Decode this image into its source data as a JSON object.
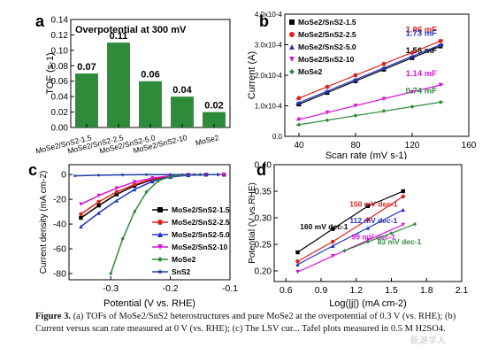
{
  "chart_data": [
    {
      "type": "bar",
      "panel_letter": "a",
      "title": "Overpotential at 300 mV",
      "ylabel": "TOF (s-1)",
      "categories": [
        "MoSe2/SnS2-1.5",
        "MoSe2/SnS2-2.5",
        "MoSe2/SnS2-5.0",
        "MoSe2/SnS2-10",
        "MoSe2"
      ],
      "values": [
        0.07,
        0.11,
        0.06,
        0.04,
        0.02
      ],
      "value_labels": [
        "0.07",
        "0.11",
        "0.06",
        "0.04",
        "0.02"
      ],
      "ylim": [
        0,
        0.14
      ],
      "yticks": [
        "0.00",
        "0.02",
        "0.04",
        "0.06",
        "0.08",
        "0.10",
        "0.12",
        "0.14"
      ],
      "bar_color": "#2e8b3a"
    },
    {
      "type": "scatter",
      "panel_letter": "b",
      "xlabel": "Scan rate (mV s-1)",
      "ylabel": "Current (A)",
      "xlim": [
        30,
        160
      ],
      "ylim": [
        0,
        0.0004
      ],
      "xticks": [
        "40",
        "80",
        "120",
        "160"
      ],
      "yticks": [
        "0.0",
        "1.0x10-4",
        "2.0x10-4",
        "3.0x10-4",
        "4.0x10-4"
      ],
      "legend_position": "top-left",
      "x": [
        40,
        60,
        80,
        100,
        120,
        140
      ],
      "series": [
        {
          "name": "MoSe2/SnS2-1.5",
          "color": "#000000",
          "marker": "square",
          "values": [
            0.000105,
            0.000143,
            0.000181,
            0.000219,
            0.000257,
            0.000295
          ],
          "label": "1.56 mF"
        },
        {
          "name": "MoSe2/SnS2-2.5",
          "color": "#e0201b",
          "marker": "circle",
          "values": [
            0.000125,
            0.000162,
            0.0002,
            0.000237,
            0.000274,
            0.000312
          ],
          "label": "1.86 mF"
        },
        {
          "name": "MoSe2/SnS2-5.0",
          "color": "#2233c8",
          "marker": "triangle",
          "values": [
            0.00011,
            0.000148,
            0.000186,
            0.000224,
            0.000262,
            0.0003
          ],
          "label": "1.73 mF"
        },
        {
          "name": "MoSe2/SnS2-10",
          "color": "#d418d4",
          "marker": "triangle-down",
          "values": [
            5.5e-05,
            7.8e-05,
            0.0001,
            0.000122,
            0.000145,
            0.000168
          ],
          "label": "1.14 mF"
        },
        {
          "name": "MoSe2",
          "color": "#2e8b3a",
          "marker": "diamond",
          "values": [
            3.8e-05,
            5.3e-05,
            6.8e-05,
            8.3e-05,
            9.7e-05,
            0.000112
          ],
          "label": "0.74 mF"
        }
      ]
    },
    {
      "type": "line",
      "panel_letter": "c",
      "xlabel": "Potential (V vs. RHE)",
      "ylabel": "Current density (mA cm-2)",
      "xlim": [
        -0.37,
        -0.1
      ],
      "ylim": [
        -85,
        8
      ],
      "xticks": [
        "-0.3",
        "-0.2",
        "-0.1"
      ],
      "yticks": [
        "0",
        "-20",
        "-40",
        "-60",
        "-80"
      ],
      "legend_position": "right",
      "series": [
        {
          "name": "MoSe2/SnS2-1.5",
          "color": "#000000",
          "marker": "square",
          "x": [
            -0.35,
            -0.32,
            -0.29,
            -0.26,
            -0.23,
            -0.2,
            -0.17,
            -0.14,
            -0.11
          ],
          "values": [
            -35,
            -25,
            -16,
            -9,
            -4,
            -1.5,
            -0.4,
            0,
            0
          ]
        },
        {
          "name": "MoSe2/SnS2-2.5",
          "color": "#e0201b",
          "marker": "circle",
          "x": [
            -0.35,
            -0.32,
            -0.29,
            -0.26,
            -0.23,
            -0.2,
            -0.17,
            -0.14,
            -0.11
          ],
          "values": [
            -32,
            -22,
            -14,
            -8,
            -3.5,
            -1.2,
            -0.3,
            0,
            0
          ]
        },
        {
          "name": "MoSe2/SnS2-5.0",
          "color": "#2233c8",
          "marker": "triangle",
          "x": [
            -0.35,
            -0.32,
            -0.29,
            -0.26,
            -0.23,
            -0.2,
            -0.17,
            -0.14,
            -0.11
          ],
          "values": [
            -42,
            -31,
            -21,
            -12,
            -5.5,
            -2,
            -0.5,
            0,
            0
          ]
        },
        {
          "name": "MoSe2/SnS2-10",
          "color": "#d418d4",
          "marker": "triangle-down",
          "x": [
            -0.35,
            -0.32,
            -0.29,
            -0.26,
            -0.23,
            -0.2,
            -0.17,
            -0.14,
            -0.11
          ],
          "values": [
            -24,
            -17,
            -11,
            -6,
            -2.8,
            -1,
            -0.2,
            0,
            0
          ]
        },
        {
          "name": "MoSe2",
          "color": "#2e8b3a",
          "marker": "diamond",
          "x": [
            -0.3,
            -0.28,
            -0.26,
            -0.24,
            -0.22,
            -0.2,
            -0.18,
            -0.15,
            -0.12
          ],
          "values": [
            -80,
            -52,
            -30,
            -14,
            -5,
            -1.5,
            -0.3,
            0,
            0
          ]
        },
        {
          "name": "SnS2",
          "color": "#1f3da8",
          "marker": "star",
          "x": [
            -0.36,
            -0.32,
            -0.28,
            -0.24,
            -0.2,
            -0.16,
            -0.12
          ],
          "values": [
            -1,
            -0.5,
            -0.2,
            0,
            0,
            0,
            0
          ]
        }
      ]
    },
    {
      "type": "scatter",
      "panel_letter": "d",
      "xlabel": "Log(|j|) (mA cm-2)",
      "ylabel": "Potential (V vs.RHE)",
      "xlim": [
        0.5,
        2.1
      ],
      "ylim": [
        0.18,
        0.4
      ],
      "xticks": [
        "0.6",
        "0.9",
        "1.2",
        "1.5",
        "1.8",
        "2.1"
      ],
      "yticks": [
        "0.20",
        "0.25",
        "0.30",
        "0.35",
        "0.40"
      ],
      "series": [
        {
          "name": "MoSe2/SnS2-1.5",
          "color": "#000000",
          "marker": "square",
          "x": [
            0.7,
            1.0,
            1.3,
            1.6
          ],
          "values": [
            0.235,
            0.279,
            0.322,
            0.35
          ],
          "label": "160 mV dec-1"
        },
        {
          "name": "MoSe2/SnS2-2.5",
          "color": "#e0201b",
          "marker": "circle",
          "x": [
            0.7,
            1.0,
            1.3,
            1.6
          ],
          "values": [
            0.218,
            0.255,
            0.297,
            0.34
          ],
          "label": "150 mV dec-1"
        },
        {
          "name": "MoSe2/SnS2-5.0",
          "color": "#2233c8",
          "marker": "triangle",
          "x": [
            0.7,
            1.0,
            1.3,
            1.6
          ],
          "values": [
            0.212,
            0.247,
            0.281,
            0.315
          ],
          "label": "112 mV dec-1"
        },
        {
          "name": "MoSe2/SnS2-10",
          "color": "#d418d4",
          "marker": "triangle-down",
          "x": [
            0.7,
            1.0,
            1.3,
            1.6
          ],
          "values": [
            0.198,
            0.228,
            0.258,
            0.287
          ],
          "label": "99 mV dec-1"
        },
        {
          "name": "MoSe2",
          "color": "#2e8b3a",
          "marker": "diamond",
          "x": [
            1.1,
            1.3,
            1.5,
            1.7
          ],
          "values": [
            0.238,
            0.255,
            0.271,
            0.288
          ],
          "label": "83 mV dec-1"
        }
      ]
    }
  ],
  "caption": {
    "label": "Figure 3.",
    "text": "(a) TOFs of MoSe2/SnS2 heterostructures and pure MoSe2 at the overpotential of 0.3 V (vs. RHE); (b) Current versus scan rate measured at 0 V (vs. RHE); (c) The LSV cur... Tafel plots measured in 0.5 M H2SO4."
  },
  "watermark": "能源学人"
}
